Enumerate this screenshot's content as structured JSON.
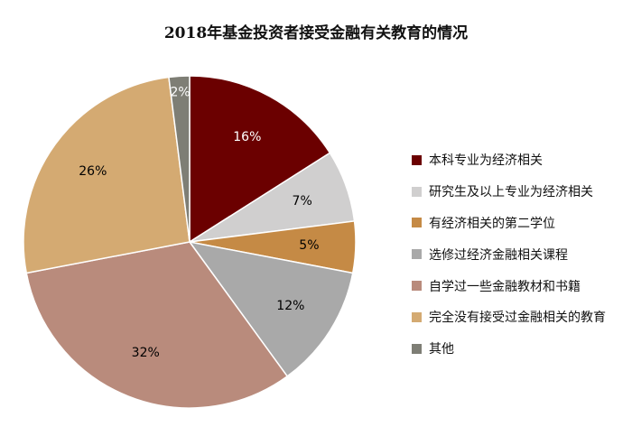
{
  "chart_data": {
    "type": "pie",
    "title": "2018年基金投资者接受金融有关教育的情况",
    "legend_position": "right",
    "slices": [
      {
        "label": "本科专业为经济相关",
        "value": 16,
        "display": "16%",
        "color": "#6b0000",
        "label_color": "#ffffff"
      },
      {
        "label": "研究生及以上专业为经济相关",
        "value": 7,
        "display": "7%",
        "color": "#d0cfcf",
        "label_color": "#000000"
      },
      {
        "label": "有经济相关的第二学位",
        "value": 5,
        "display": "5%",
        "color": "#c58a45",
        "label_color": "#000000"
      },
      {
        "label": "选修过经济金融相关课程",
        "value": 12,
        "display": "12%",
        "color": "#a9a9a9",
        "label_color": "#000000"
      },
      {
        "label": "自学过一些金融教材和书籍",
        "value": 32,
        "display": "32%",
        "color": "#b98b7c",
        "label_color": "#000000"
      },
      {
        "label": "完全没有接受过金融相关的教育",
        "value": 26,
        "display": "26%",
        "color": "#d4aa72",
        "label_color": "#000000"
      },
      {
        "label": "其他",
        "value": 2,
        "display": "2%",
        "color": "#7e7e75",
        "label_color": "#ffffff"
      }
    ]
  }
}
